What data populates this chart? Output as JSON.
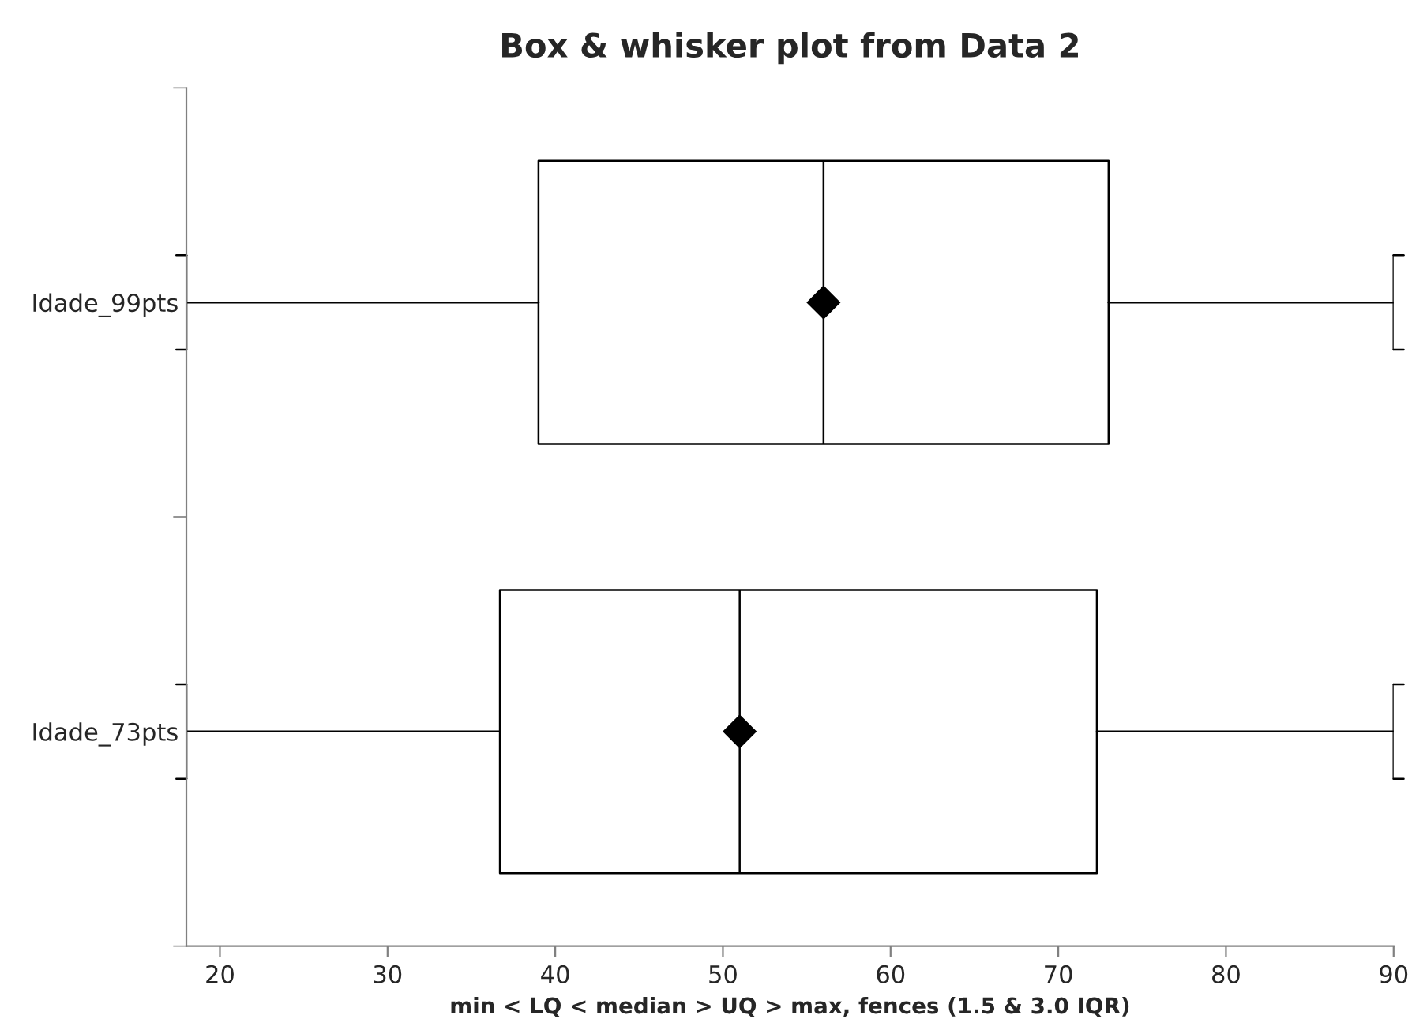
{
  "chart_data": {
    "type": "box",
    "title": "Box & whisker plot from Data 2",
    "xlabel": "min < LQ < median > UQ > max, fences (1.5 & 3.0 IQR)",
    "orientation": "horizontal",
    "categories": [
      "Idade_99pts",
      "Idade_73pts"
    ],
    "boxes": [
      {
        "low": 18,
        "q1": 39,
        "median": 56,
        "q3": 73,
        "high": 90,
        "mean": 56
      },
      {
        "low": 18,
        "q1": 36.7,
        "median": 51,
        "q3": 72.3,
        "high": 90,
        "mean": 51
      }
    ],
    "xlim": [
      18,
      90
    ],
    "xticks": [
      20,
      30,
      40,
      50,
      60,
      70,
      80,
      90
    ],
    "grid": false,
    "marker": "diamond",
    "legend": false
  }
}
